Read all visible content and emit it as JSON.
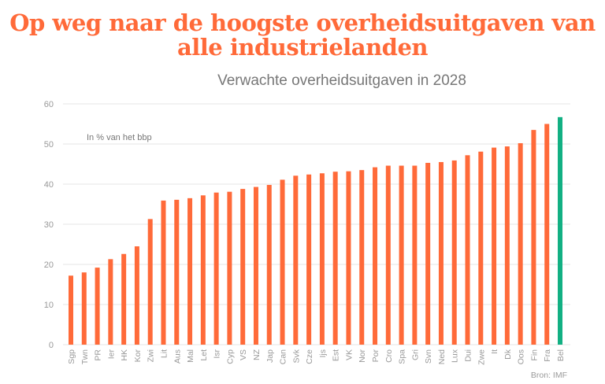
{
  "title": "Op weg naar de hoogste overheidsuitgaven van alle industrielanden",
  "subtitle": "Verwachte overheidsuitgaven in 2028",
  "source": "Bron: IMF",
  "chart_data": {
    "type": "bar",
    "unit_label": "In % van het bbp",
    "categories": [
      "Sgp",
      "Twn",
      "PR",
      "Ier",
      "HK",
      "Kor",
      "Zwi",
      "Lit",
      "Aus",
      "Mal",
      "Let",
      "Isr",
      "Cyp",
      "VS",
      "NZ",
      "Jap",
      "Can",
      "Svk",
      "Cze",
      "Ijs",
      "Est",
      "VK",
      "Nor",
      "Por",
      "Cro",
      "Spa",
      "Gri",
      "Svn",
      "Ned",
      "Lux",
      "Dui",
      "Zwe",
      "It",
      "Dk",
      "Oos",
      "Fin",
      "Fra",
      "Bel"
    ],
    "values": [
      17.2,
      18.0,
      19.2,
      21.3,
      22.6,
      24.5,
      31.3,
      35.9,
      36.1,
      36.5,
      37.2,
      37.9,
      38.1,
      38.8,
      39.3,
      39.8,
      41.1,
      42.1,
      42.4,
      42.7,
      43.1,
      43.2,
      43.5,
      44.2,
      44.6,
      44.6,
      44.6,
      45.3,
      45.5,
      45.9,
      47.2,
      48.1,
      49.1,
      49.4,
      50.2,
      53.5,
      55.0,
      56.7
    ],
    "highlight": "Bel",
    "colors": {
      "bar": "#ff6a39",
      "highlight": "#12b083"
    },
    "ylim": [
      0,
      60
    ],
    "yticks": [
      0,
      10,
      20,
      30,
      40,
      50,
      60
    ],
    "grid": true
  }
}
